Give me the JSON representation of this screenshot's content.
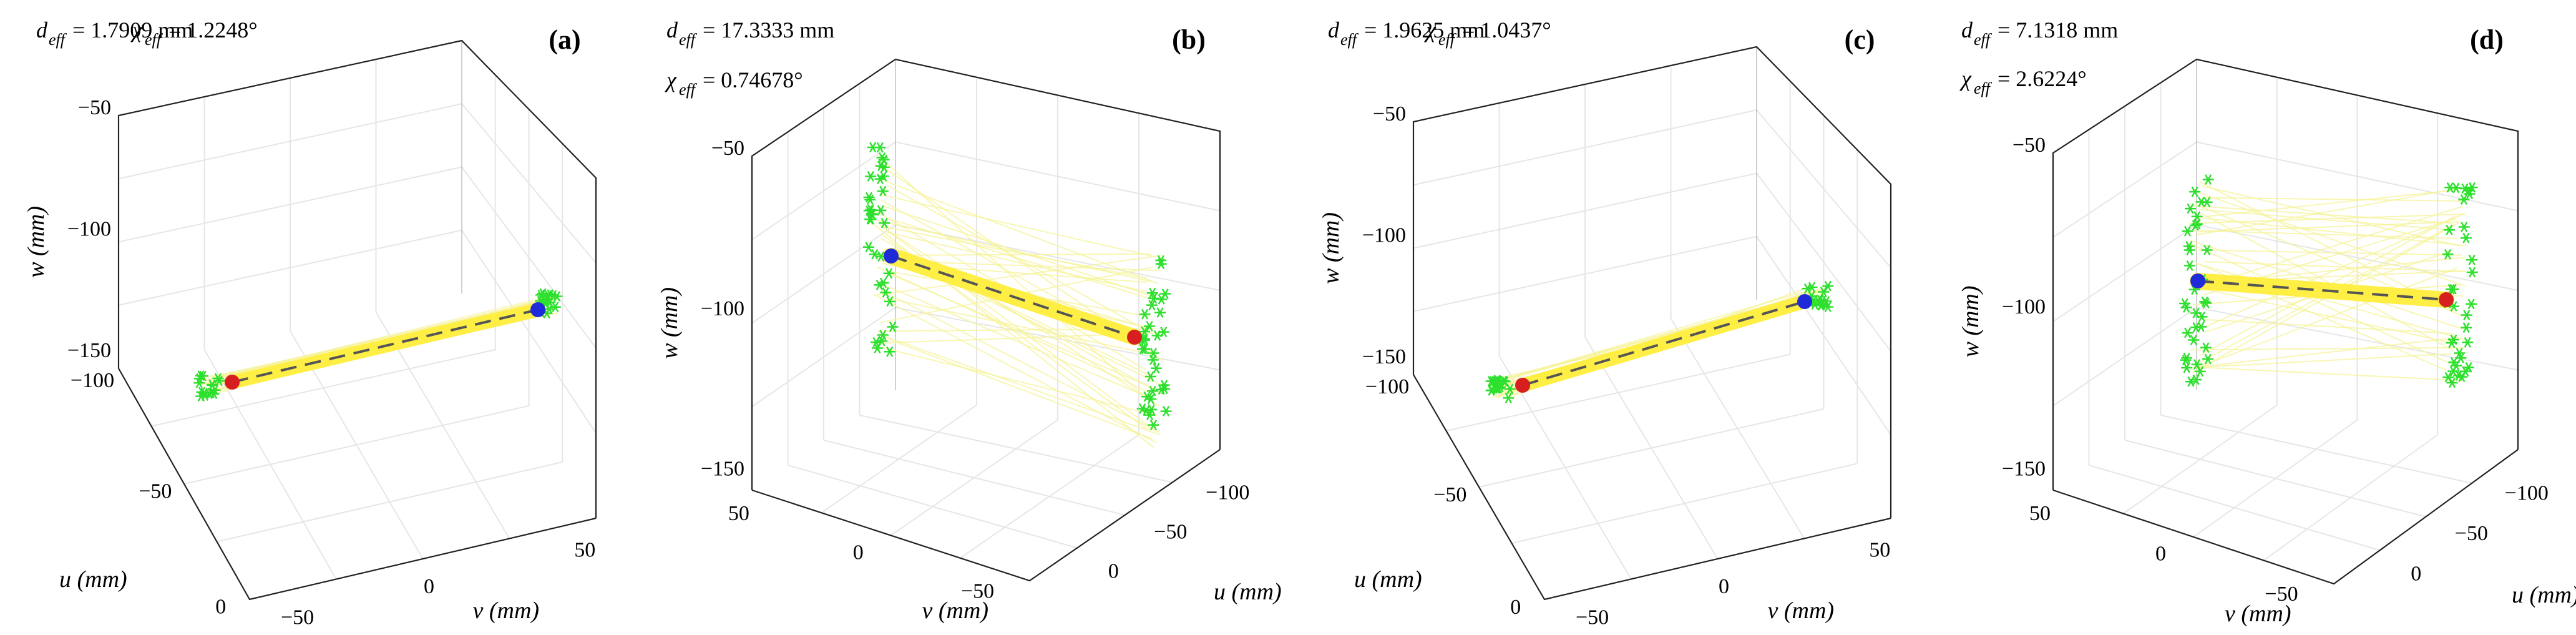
{
  "figure": {
    "colors": {
      "edge": "#222222",
      "grid": "#e6e6e6",
      "beam": "#ffee44",
      "strand": "#f6f39a",
      "cloud": "#2ee02e",
      "center_line": "#555555",
      "end_start": "#d81f1f",
      "end_finish": "#1f2bd8"
    },
    "legend_symbols": {
      "d": "d",
      "chi": "χ",
      "subscript": "eff"
    }
  },
  "chart_data": [
    {
      "type": "3d-line",
      "panel_label": "(a)",
      "title_d_value": "= 1.7909 mm",
      "title_chi_value": "= 1.2248°",
      "vlabel": "v (mm)",
      "ulabel": "u (mm)",
      "wlabel": "w (mm)",
      "wticks": [
        "−50",
        "−100",
        "−150"
      ],
      "uticks": [
        "−100",
        "−50",
        "0"
      ],
      "vticks": [
        "−50",
        "0",
        "50"
      ],
      "d_eff_mm": 1.7909,
      "chi_eff_deg": 1.2248
    },
    {
      "type": "3d-line",
      "panel_label": "(b)",
      "title_d_value": "= 17.3333 mm",
      "title_chi_value": "= 0.74678°",
      "vlabel": "v (mm)",
      "ulabel": "u (mm)",
      "wlabel": "w (mm)",
      "wticks": [
        "−50",
        "−100",
        "−150"
      ],
      "uticks": [
        "0",
        "−50",
        "−100"
      ],
      "vticks": [
        "50",
        "0",
        "−50"
      ],
      "d_eff_mm": 17.3333,
      "chi_eff_deg": 0.74678
    },
    {
      "type": "3d-line",
      "panel_label": "(c)",
      "title_d_value": "= 1.9625 mm",
      "title_chi_value": "= 1.0437°",
      "vlabel": "v (mm)",
      "ulabel": "u (mm)",
      "wlabel": "w (mm)",
      "wticks": [
        "−50",
        "−100",
        "−150"
      ],
      "uticks": [
        "−100",
        "−50",
        "0"
      ],
      "vticks": [
        "−50",
        "0",
        "50"
      ],
      "d_eff_mm": 1.9625,
      "chi_eff_deg": 1.0437
    },
    {
      "type": "3d-line",
      "panel_label": "(d)",
      "title_d_value": "= 7.1318 mm",
      "title_chi_value": "= 2.6224°",
      "vlabel": "v (mm)",
      "ulabel": "u (mm)",
      "wlabel": "w (mm)",
      "wticks": [
        "−50",
        "−100",
        "−150"
      ],
      "uticks": [
        "0",
        "−50",
        "−100"
      ],
      "vticks": [
        "50",
        "0",
        "−50"
      ],
      "d_eff_mm": 7.1318,
      "chi_eff_deg": 2.6224
    }
  ]
}
